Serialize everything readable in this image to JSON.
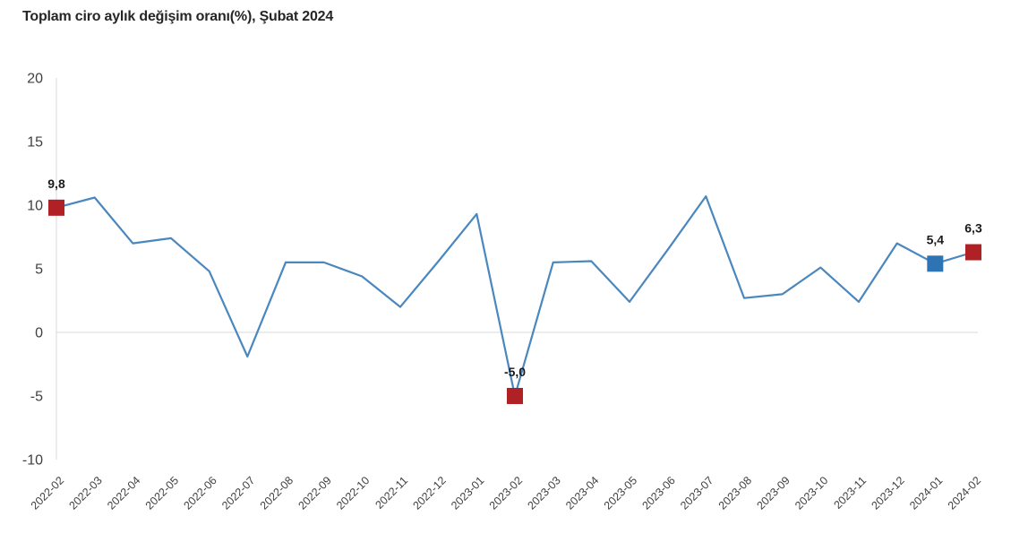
{
  "chart": {
    "title": "Toplam ciro aylık değişim oranı(%), Şubat 2024"
  },
  "chart_data": {
    "type": "line",
    "title": "Toplam ciro aylık değişim oranı(%), Şubat 2024",
    "categories": [
      "2022-02",
      "2022-03",
      "2022-04",
      "2022-05",
      "2022-06",
      "2022-07",
      "2022-08",
      "2022-09",
      "2022-10",
      "2022-11",
      "2022-12",
      "2023-01",
      "2023-02",
      "2023-03",
      "2023-04",
      "2023-05",
      "2023-06",
      "2023-07",
      "2023-08",
      "2023-09",
      "2023-10",
      "2023-11",
      "2023-12",
      "2024-01",
      "2024-02"
    ],
    "values": [
      9.8,
      10.6,
      7.0,
      7.4,
      4.8,
      -1.9,
      5.5,
      5.5,
      4.4,
      2.0,
      5.6,
      9.3,
      -5.0,
      5.5,
      5.6,
      2.4,
      6.5,
      10.7,
      2.7,
      3.0,
      5.1,
      2.4,
      7.0,
      5.4,
      6.3
    ],
    "highlight_markers": [
      {
        "category": "2022-02",
        "index": 0,
        "value": 9.8,
        "label": "9,8",
        "color": "#b02125"
      },
      {
        "category": "2023-02",
        "index": 12,
        "value": -5.0,
        "label": "-5,0",
        "color": "#b02125"
      },
      {
        "category": "2024-01",
        "index": 23,
        "value": 5.4,
        "label": "5,4",
        "color": "#2e74b5"
      },
      {
        "category": "2024-02",
        "index": 24,
        "value": 6.3,
        "label": "6,3",
        "color": "#b02125"
      }
    ],
    "yticks": [
      20,
      15,
      10,
      5,
      0,
      -5,
      -10
    ],
    "ylim": [
      -10,
      20
    ],
    "xlabel": "",
    "ylabel": "",
    "grid": "zero-line-only",
    "legend": "none",
    "line_color": "#4a87be",
    "marker_red": "#b02125",
    "marker_blue": "#2e74b5",
    "axis_color": "#d9d9d9",
    "tick_label_color": "#404040"
  }
}
